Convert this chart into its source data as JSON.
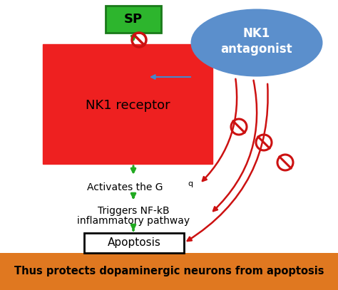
{
  "bg_color": "#ffffff",
  "bottom_bar_color": "#e07820",
  "bottom_bar_text": "Thus protects dopaminergic neurons from apoptosis",
  "bottom_bar_text_color": "#000000",
  "sp_box_color": "#2db52d",
  "sp_box_edge_color": "#1a7a1a",
  "sp_text": "SP",
  "nk1_rect_color": "#ee2020",
  "nk1_rect_text": "NK1 receptor",
  "nk1_ant_color": "#5b8fcc",
  "nk1_ant_text": "NK1\nantagonist",
  "arrow_green": "#22aa22",
  "arrow_red": "#cc1111",
  "arrow_blue": "#4488cc",
  "text_activates": "Activates the G",
  "text_activates_sub": "q",
  "text_triggers_line1": "Triggers NF-kB",
  "text_triggers_line2": "inflammatory pathway",
  "apoptosis_text": "Apoptosis"
}
